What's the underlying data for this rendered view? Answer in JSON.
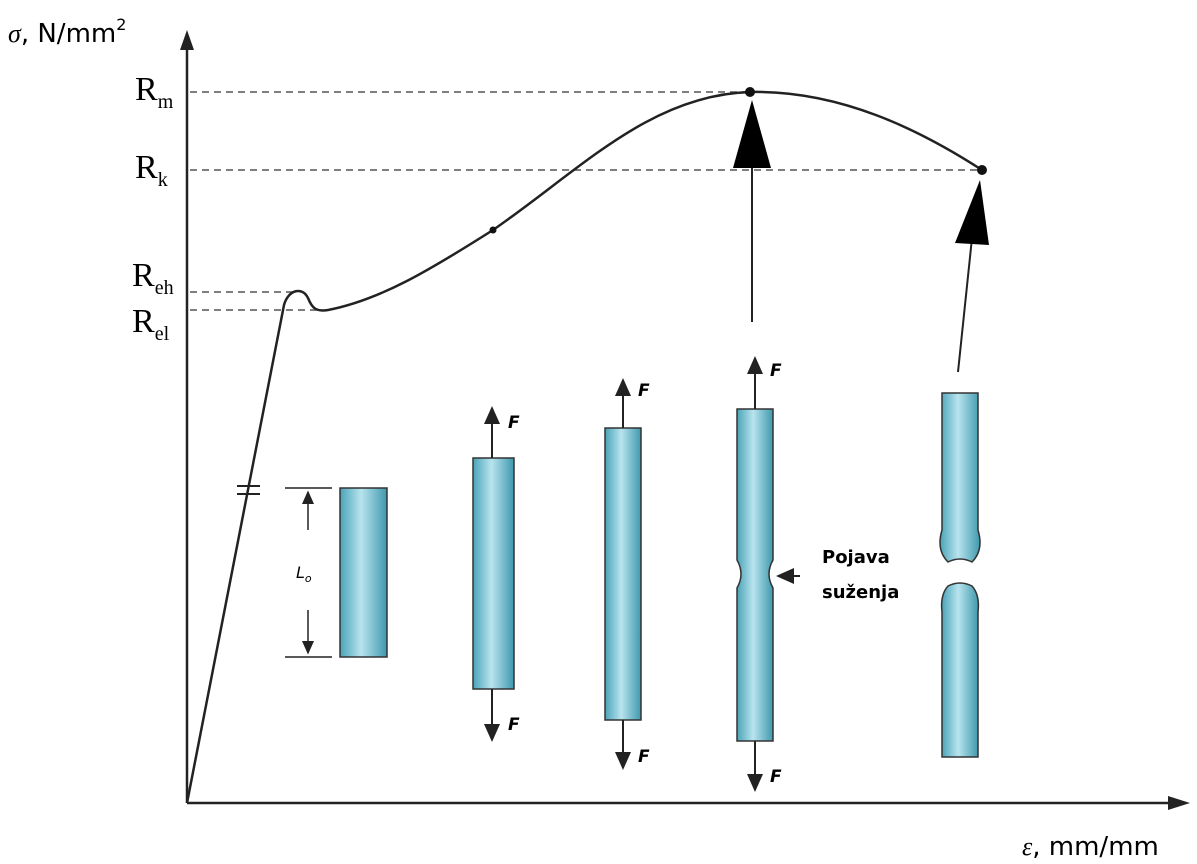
{
  "y_axis": {
    "symbol": "σ",
    "unit": ", N/mm",
    "sup": "2"
  },
  "x_axis": {
    "symbol": "ε",
    "unit": ", mm/mm"
  },
  "levels": [
    {
      "main": "R",
      "sub": "m"
    },
    {
      "main": "R",
      "sub": "k"
    },
    {
      "main": "R",
      "sub": "eh"
    },
    {
      "main": "R",
      "sub": "el"
    }
  ],
  "gauge_length": {
    "main": "L",
    "sub": "o"
  },
  "force_labels": [
    "F",
    "F",
    "F",
    "F",
    "F",
    "F"
  ],
  "necking_note": [
    "Pojava",
    "suženja"
  ]
}
